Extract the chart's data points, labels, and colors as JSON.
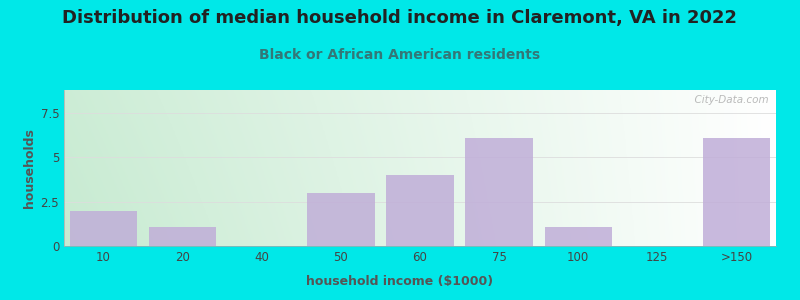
{
  "title": "Distribution of median household income in Claremont, VA in 2022",
  "subtitle": "Black or African American residents",
  "xlabel": "household income ($1000)",
  "ylabel": "households",
  "categories": [
    "10",
    "20",
    "40",
    "50",
    "60",
    "75",
    "100",
    "125",
    ">150"
  ],
  "values": [
    2.0,
    1.1,
    0.0,
    3.0,
    4.0,
    6.1,
    1.1,
    0.0,
    6.1
  ],
  "bar_color": "#c0aed8",
  "outer_bg": "#00e8e8",
  "ylim": [
    0,
    8.8
  ],
  "yticks": [
    0,
    2.5,
    5.0,
    7.5
  ],
  "title_fontsize": 13,
  "subtitle_fontsize": 10,
  "axis_label_fontsize": 9,
  "watermark": "  City-Data.com"
}
